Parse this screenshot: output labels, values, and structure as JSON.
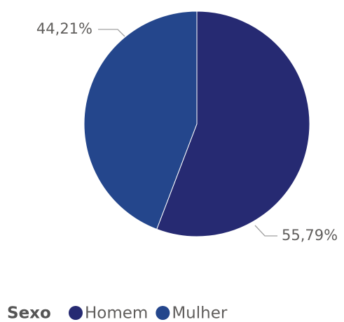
{
  "chart_data": {
    "type": "pie",
    "categories": [
      "Homem",
      "Mulher"
    ],
    "values": [
      55.79,
      44.21
    ],
    "value_labels": [
      "55,79%",
      "44,21%"
    ],
    "colors": [
      "#262a72",
      "#24468c"
    ],
    "legend_title": "Sexo",
    "legend": "bottom-left"
  }
}
